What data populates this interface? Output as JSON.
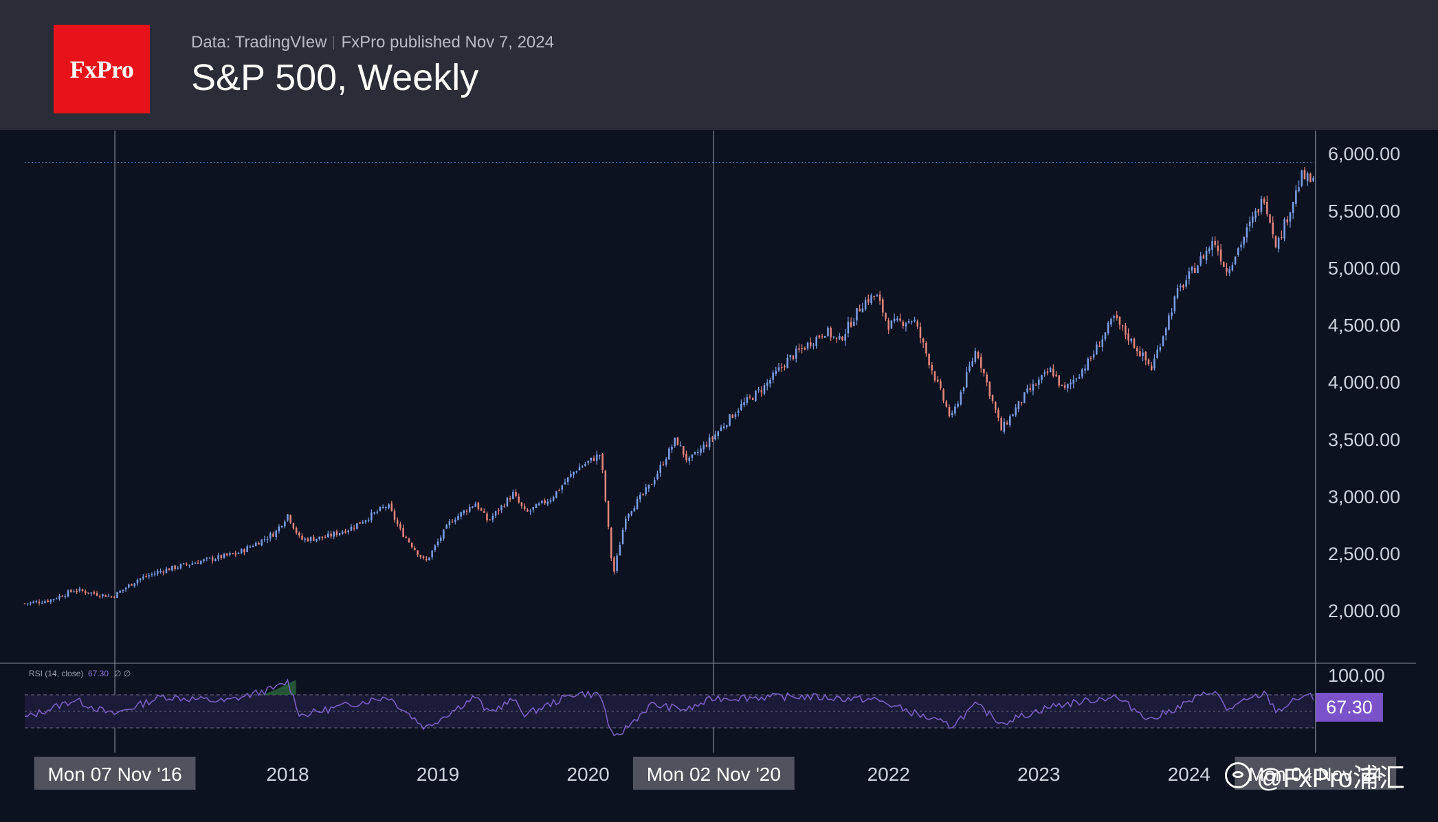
{
  "header": {
    "logo_text": "FxPro",
    "source": "Data: TradingVIew",
    "published": "FxPro published Nov 7, 2024",
    "title": "S&P 500, Weekly"
  },
  "colors": {
    "background": "#0c1220",
    "header_bg": "#2a2d38",
    "logo_bg": "#e8131a",
    "up_candle": "#7b9fe8",
    "down_candle": "#e8867c",
    "rsi_line": "#7b5ec4",
    "rsi_badge": "#7b52c9",
    "overbought_fill": "#2e6b3e"
  },
  "watermark": {
    "text": "@FxPro浦汇",
    "icon": "weibo-icon"
  },
  "chart_data": [
    {
      "type": "candlestick",
      "series_name": "S&P 500",
      "timeframe": "Weekly",
      "ylim": [
        1600,
        6100
      ],
      "y_ticks": [
        "6,000.00",
        "5,500.00",
        "5,000.00",
        "4,500.00",
        "4,000.00",
        "3,500.00",
        "3,000.00",
        "2,500.00",
        "2,000.00"
      ],
      "y_tick_values": [
        6000,
        5500,
        5000,
        4500,
        4000,
        3500,
        3000,
        2500,
        2000
      ],
      "x_range": [
        "2016-04",
        "2024-11"
      ],
      "x_ticks": [
        {
          "label": "Mon 07 Nov '16",
          "date": "2016-11-07",
          "highlight": true
        },
        {
          "label": "2018",
          "date": "2018-01-01",
          "highlight": false
        },
        {
          "label": "2019",
          "date": "2019-01-01",
          "highlight": false
        },
        {
          "label": "2020",
          "date": "2020-01-01",
          "highlight": false
        },
        {
          "label": "Mon 02 Nov '20",
          "date": "2020-11-02",
          "highlight": true
        },
        {
          "label": "2022",
          "date": "2022-01-01",
          "highlight": false
        },
        {
          "label": "2023",
          "date": "2023-01-01",
          "highlight": false
        },
        {
          "label": "2024",
          "date": "2024-01-01",
          "highlight": false
        },
        {
          "label": "Mon 04 Nov '24",
          "date": "2024-11-04",
          "highlight": true
        }
      ],
      "vertical_markers": [
        "2016-11-07",
        "2020-11-02",
        "2024-11-04"
      ],
      "reference_line": 5920,
      "close_path": [
        [
          "2016-04",
          2060
        ],
        [
          "2016-06",
          2090
        ],
        [
          "2016-08",
          2180
        ],
        [
          "2016-11",
          2120
        ],
        [
          "2017-01",
          2270
        ],
        [
          "2017-03",
          2350
        ],
        [
          "2017-06",
          2430
        ],
        [
          "2017-09",
          2500
        ],
        [
          "2017-12",
          2680
        ],
        [
          "2018-01",
          2840
        ],
        [
          "2018-02",
          2620
        ],
        [
          "2018-04",
          2640
        ],
        [
          "2018-06",
          2720
        ],
        [
          "2018-09",
          2920
        ],
        [
          "2018-10",
          2700
        ],
        [
          "2018-12",
          2420
        ],
        [
          "2019-02",
          2780
        ],
        [
          "2019-04",
          2940
        ],
        [
          "2019-05",
          2780
        ],
        [
          "2019-07",
          3020
        ],
        [
          "2019-08",
          2850
        ],
        [
          "2019-10",
          2980
        ],
        [
          "2019-12",
          3230
        ],
        [
          "2020-02",
          3370
        ],
        [
          "2020-03",
          2300
        ],
        [
          "2020-04",
          2830
        ],
        [
          "2020-06",
          3100
        ],
        [
          "2020-08",
          3500
        ],
        [
          "2020-09",
          3300
        ],
        [
          "2020-11",
          3520
        ],
        [
          "2021-01",
          3770
        ],
        [
          "2021-03",
          3950
        ],
        [
          "2021-05",
          4200
        ],
        [
          "2021-08",
          4450
        ],
        [
          "2021-09",
          4350
        ],
        [
          "2021-11",
          4700
        ],
        [
          "2021-12",
          4760
        ],
        [
          "2022-01",
          4500
        ],
        [
          "2022-03",
          4550
        ],
        [
          "2022-05",
          3950
        ],
        [
          "2022-06",
          3670
        ],
        [
          "2022-08",
          4290
        ],
        [
          "2022-10",
          3580
        ],
        [
          "2022-12",
          3900
        ],
        [
          "2023-02",
          4110
        ],
        [
          "2023-03",
          3920
        ],
        [
          "2023-05",
          4180
        ],
        [
          "2023-07",
          4560
        ],
        [
          "2023-10",
          4120
        ],
        [
          "2023-12",
          4770
        ],
        [
          "2024-03",
          5240
        ],
        [
          "2024-04",
          4970
        ],
        [
          "2024-07",
          5620
        ],
        [
          "2024-08",
          5190
        ],
        [
          "2024-10",
          5800
        ],
        [
          "2024-11",
          5740
        ]
      ]
    },
    {
      "type": "line",
      "series_name": "RSI",
      "indicator_label": "RSI (14, close)",
      "indicator_value_text": "67.30",
      "indicator_extras": "∅ ∅",
      "current_value": 67.3,
      "badge_text": "67.30",
      "top_tick": "100.00",
      "ylim": [
        0,
        100
      ],
      "bands": [
        70,
        50,
        30
      ],
      "rsi_path": [
        [
          "2016-04",
          42
        ],
        [
          "2016-08",
          64
        ],
        [
          "2016-11",
          46
        ],
        [
          "2017-03",
          68
        ],
        [
          "2017-08",
          62
        ],
        [
          "2017-12",
          78
        ],
        [
          "2018-01",
          86
        ],
        [
          "2018-02",
          45
        ],
        [
          "2018-05",
          55
        ],
        [
          "2018-09",
          68
        ],
        [
          "2018-12",
          30
        ],
        [
          "2019-04",
          68
        ],
        [
          "2019-05",
          48
        ],
        [
          "2019-07",
          64
        ],
        [
          "2019-08",
          46
        ],
        [
          "2019-12",
          72
        ],
        [
          "2020-02",
          70
        ],
        [
          "2020-03",
          15
        ],
        [
          "2020-06",
          58
        ],
        [
          "2020-09",
          52
        ],
        [
          "2020-11",
          66
        ],
        [
          "2021-06",
          68
        ],
        [
          "2021-12",
          64
        ],
        [
          "2022-06",
          32
        ],
        [
          "2022-08",
          58
        ],
        [
          "2022-10",
          36
        ],
        [
          "2023-02",
          56
        ],
        [
          "2023-07",
          68
        ],
        [
          "2023-10",
          40
        ],
        [
          "2024-03",
          76
        ],
        [
          "2024-04",
          52
        ],
        [
          "2024-07",
          72
        ],
        [
          "2024-08",
          50
        ],
        [
          "2024-10",
          68
        ],
        [
          "2024-11",
          67.3
        ]
      ]
    }
  ]
}
